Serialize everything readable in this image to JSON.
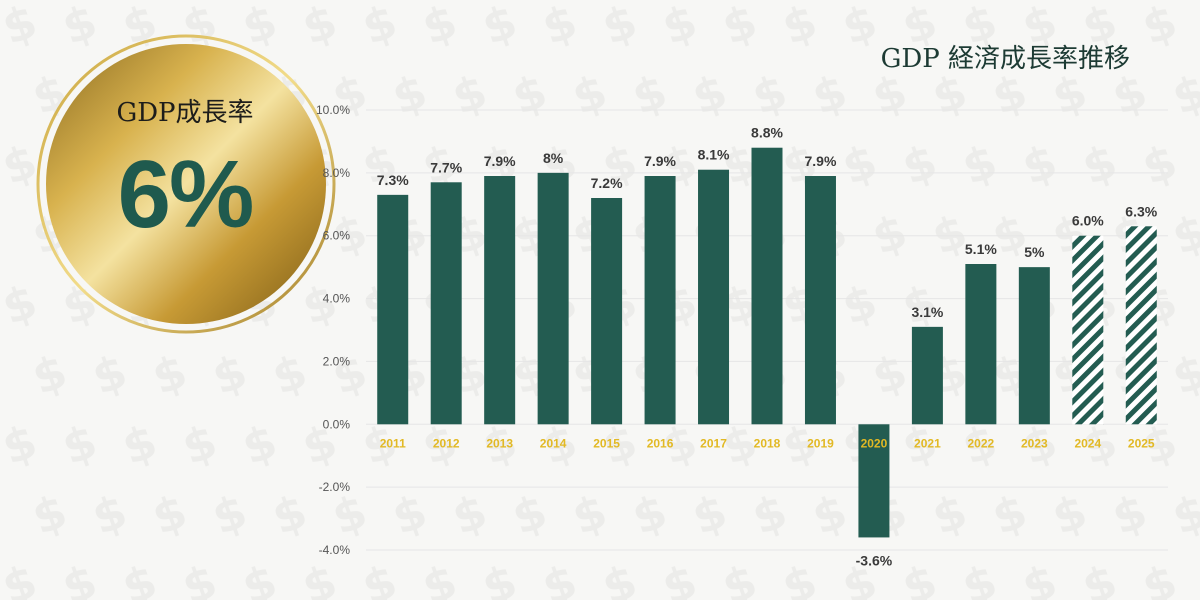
{
  "badge": {
    "title": "GDP成長率",
    "value": "6%"
  },
  "colors": {
    "bar": "#235c51",
    "year_label": "#e2b924",
    "value_label": "#3a3a3a",
    "axis_label": "#555555",
    "grid": "#e6e6e6"
  },
  "chart_data": {
    "type": "bar",
    "title": "GDP 経済成長率推移",
    "xlabel": "",
    "ylabel": "",
    "ylim": [
      -4.0,
      10.0
    ],
    "yticks": [
      10.0,
      8.0,
      6.0,
      4.0,
      2.0,
      0.0,
      -2.0,
      -4.0
    ],
    "ytick_labels": [
      "10.0%",
      "8.0%",
      "6.0%",
      "4.0%",
      "2.0%",
      "0.0%",
      "-2.0%",
      "-4.0%"
    ],
    "categories": [
      "2011",
      "2012",
      "2013",
      "2014",
      "2015",
      "2016",
      "2017",
      "2018",
      "2019",
      "2020",
      "2021",
      "2022",
      "2023",
      "2024",
      "2025"
    ],
    "values": [
      7.3,
      7.7,
      7.9,
      8.0,
      7.2,
      7.9,
      8.1,
      8.8,
      7.9,
      -3.6,
      3.1,
      5.1,
      5.0,
      6.0,
      6.3
    ],
    "value_labels": [
      "7.3%",
      "7.7%",
      "7.9%",
      "8%",
      "7.2%",
      "7.9%",
      "8.1%",
      "8.8%",
      "7.9%",
      "-3.6%",
      "3.1%",
      "5.1%",
      "5%",
      "6.0%",
      "6.3%"
    ],
    "forecast": [
      false,
      false,
      false,
      false,
      false,
      false,
      false,
      false,
      false,
      false,
      false,
      false,
      false,
      true,
      true
    ]
  }
}
